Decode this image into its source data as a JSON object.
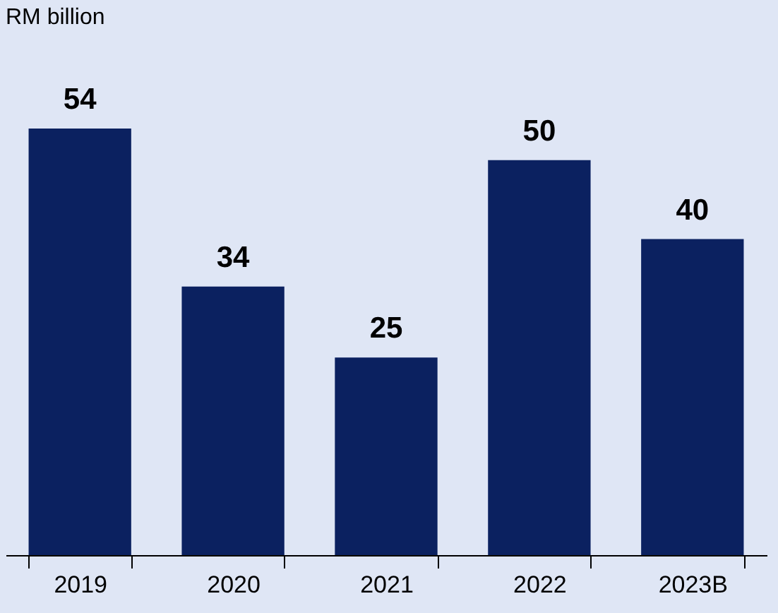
{
  "chart_data": {
    "type": "bar",
    "ylabel": "RM billion",
    "categories": [
      "2019",
      "2020",
      "2021",
      "2022",
      "2023B"
    ],
    "values": [
      54,
      34,
      25,
      50,
      40
    ],
    "color": "#0b2160",
    "data_labels": true
  }
}
